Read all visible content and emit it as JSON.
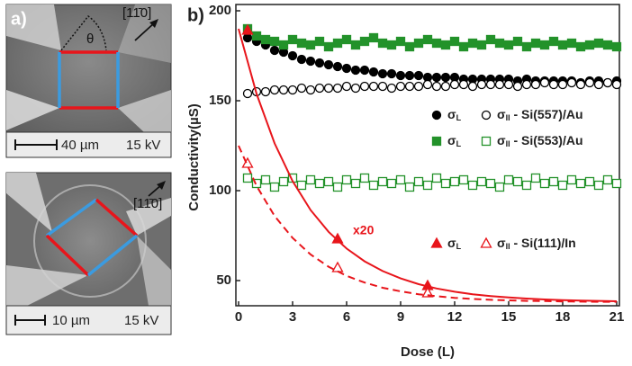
{
  "image_panels": {
    "label": "a)",
    "panels": [
      {
        "angle": "θ",
        "direction": "[11̄0]",
        "scale": "40 µm",
        "voltage": "15 kV"
      },
      {
        "direction": "[11̄0]",
        "scale": "10 µm",
        "voltage": "15 kV"
      }
    ]
  },
  "chart_data": {
    "type": "scatter",
    "panel_label": "b)",
    "x_label": "Dose (L)",
    "y_label": "Conductivity(µS)",
    "xlim": [
      0,
      21
    ],
    "xticks": [
      0,
      3,
      6,
      9,
      12,
      15,
      18,
      21
    ],
    "ylim": [
      36,
      203
    ],
    "yticks": [
      50,
      100,
      150,
      200
    ],
    "annotations": [
      {
        "text": "x20",
        "color": "#e8151b"
      }
    ],
    "x": [
      0.5,
      1,
      1.5,
      2,
      2.5,
      3,
      3.5,
      4,
      4.5,
      5,
      5.5,
      6,
      6.5,
      7,
      7.5,
      8,
      8.5,
      9,
      9.5,
      10,
      10.5,
      11,
      11.5,
      12,
      12.5,
      13,
      13.5,
      14,
      14.5,
      15,
      15.5,
      16,
      16.5,
      17,
      17.5,
      18,
      18.5,
      19,
      19.5,
      20,
      20.5,
      21
    ],
    "series": [
      {
        "name": "σL",
        "color": "#000000",
        "marker": "circle",
        "filled": true,
        "values": [
          185,
          183,
          181,
          178,
          177,
          175,
          173,
          172,
          171,
          170,
          169,
          168,
          167,
          167,
          166,
          165,
          165,
          164,
          164,
          164,
          163,
          163,
          163,
          163,
          162,
          162,
          162,
          162,
          162,
          162,
          161,
          162,
          161,
          161,
          161,
          161,
          161,
          160,
          161,
          161,
          160,
          161
        ]
      },
      {
        "name": "σII - Si(557)/Au",
        "color": "#000000",
        "marker": "circle",
        "filled": false,
        "values": [
          154,
          155,
          155,
          156,
          156,
          156,
          157,
          156,
          157,
          157,
          157,
          158,
          157,
          158,
          158,
          158,
          157,
          158,
          158,
          158,
          159,
          158,
          158,
          159,
          159,
          158,
          159,
          159,
          159,
          159,
          158,
          159,
          159,
          160,
          159,
          159,
          160,
          159,
          160,
          159,
          160,
          159
        ]
      },
      {
        "name": "σL",
        "color": "#23922a",
        "marker": "square",
        "filled": true,
        "values": [
          190,
          186,
          184,
          183,
          181,
          184,
          182,
          181,
          183,
          180,
          182,
          184,
          181,
          183,
          185,
          182,
          181,
          183,
          180,
          182,
          184,
          182,
          181,
          183,
          180,
          182,
          181,
          184,
          182,
          181,
          183,
          180,
          182,
          181,
          183,
          181,
          182,
          180,
          181,
          182,
          181,
          180
        ]
      },
      {
        "name": "σII - Si(553)/Au",
        "color": "#23922a",
        "marker": "square",
        "filled": false,
        "values": [
          107,
          104,
          106,
          102,
          105,
          107,
          103,
          106,
          104,
          105,
          102,
          106,
          104,
          107,
          103,
          105,
          104,
          106,
          102,
          105,
          103,
          107,
          104,
          105,
          106,
          103,
          105,
          104,
          102,
          106,
          105,
          103,
          107,
          104,
          105,
          103,
          106,
          104,
          105,
          103,
          106,
          104
        ]
      },
      {
        "name": "σL",
        "color": "#e8151b",
        "marker": "triangle",
        "filled": true,
        "x": [
          0.5,
          5.5,
          10.5
        ],
        "values": [
          189,
          73,
          47
        ]
      },
      {
        "name": "σII - Si(111)/In",
        "color": "#e8151b",
        "marker": "triangle",
        "filled": false,
        "x": [
          0.5,
          5.5,
          10.5
        ],
        "values": [
          115,
          57,
          43
        ]
      },
      {
        "type": "line",
        "color": "#e8151b",
        "dashed": false,
        "x": [
          0,
          1,
          2,
          3,
          4,
          5,
          6,
          7,
          8,
          9,
          10,
          11,
          12,
          13,
          14,
          15,
          16,
          17,
          18,
          19,
          20,
          21
        ],
        "values": [
          190,
          153.8,
          126.3,
          105.3,
          89.2,
          77.1,
          67.8,
          60.7,
          55.3,
          51.2,
          48.0,
          45.6,
          43.8,
          42.4,
          41.4,
          40.6,
          40.0,
          39.5,
          39.1,
          38.9,
          38.7,
          38.5
        ]
      },
      {
        "type": "line",
        "color": "#e8151b",
        "dashed": true,
        "x": [
          0,
          1,
          2,
          3,
          4,
          5,
          6,
          7,
          8,
          9,
          10,
          11,
          12,
          13,
          14,
          15,
          16,
          17,
          18,
          19,
          20,
          21
        ],
        "values": [
          125,
          102.6,
          85.9,
          73.7,
          64.5,
          57.7,
          52.6,
          48.9,
          46.0,
          44.0,
          42.4,
          41.3,
          40.4,
          39.8,
          39.3,
          39.0,
          38.7,
          38.6,
          38.4,
          38.3,
          38.2,
          38.2
        ]
      }
    ]
  }
}
